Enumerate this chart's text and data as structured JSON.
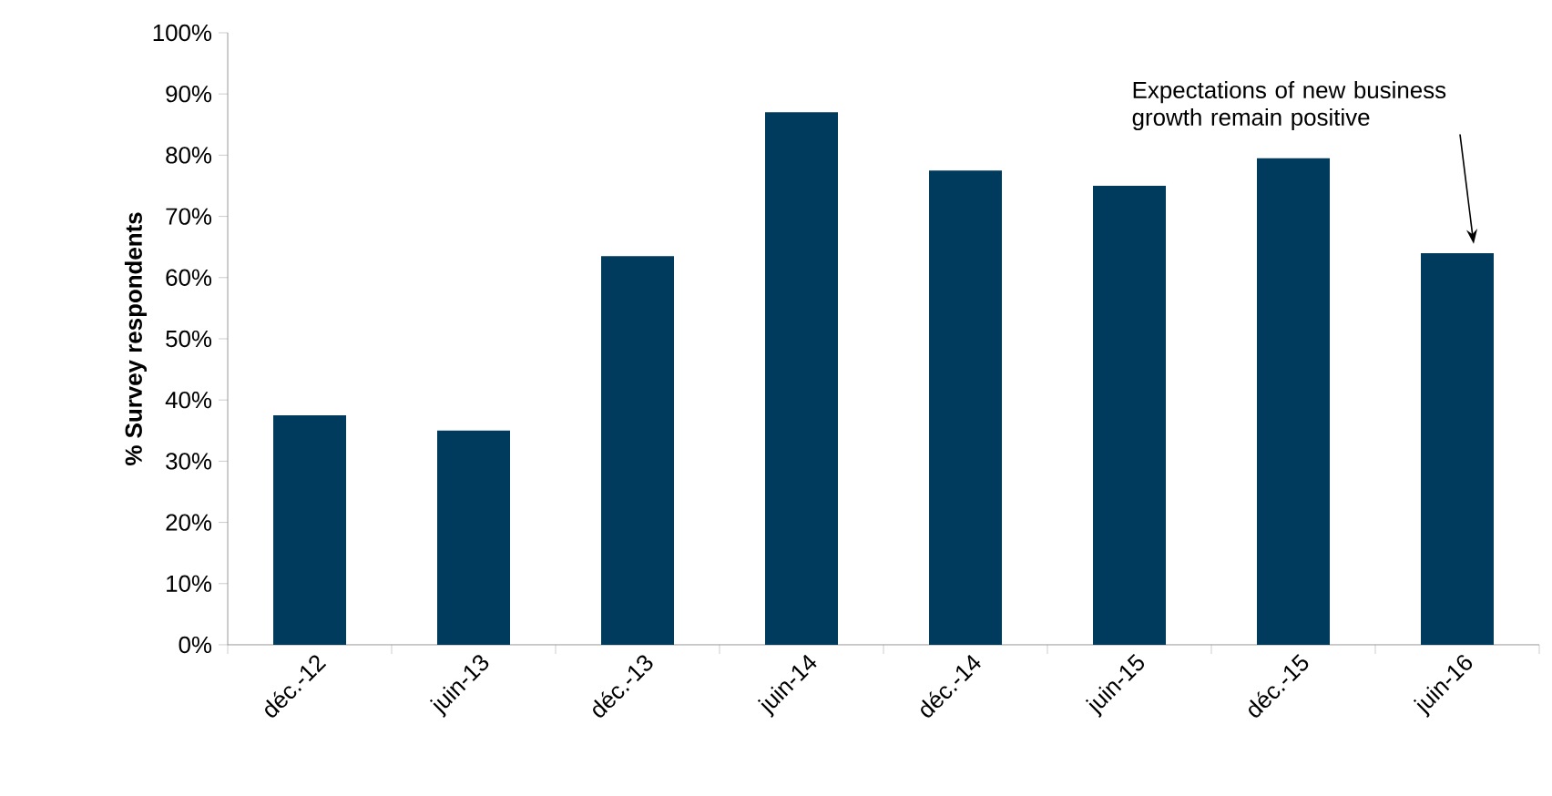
{
  "chart_data": {
    "type": "bar",
    "ylabel": "**% Survey respondents**",
    "categories": [
      "déc.-12",
      "juin-13",
      "déc.-13",
      "juin-14",
      "déc.-14",
      "juin-15",
      "déc.-15",
      "juin-16"
    ],
    "values": [
      37.5,
      35,
      63.5,
      87,
      77.5,
      75,
      79.5,
      64
    ],
    "color": "#003a5c",
    "ylim": [
      0,
      100
    ],
    "yticks": [
      {
        "value": 0,
        "label": "0%"
      },
      {
        "value": 10,
        "label": "10%"
      },
      {
        "value": 20,
        "label": "20%"
      },
      {
        "value": 30,
        "label": "30%"
      },
      {
        "value": 40,
        "label": "40%"
      },
      {
        "value": 50,
        "label": "50%"
      },
      {
        "value": 60,
        "label": "60%"
      },
      {
        "value": 70,
        "label": "70%"
      },
      {
        "value": 80,
        "label": "80%"
      },
      {
        "value": 90,
        "label": "90%"
      },
      {
        "value": 100,
        "label": "100%"
      }
    ],
    "grid": false,
    "annotations": [
      "Expectations of new business growth remain positive"
    ]
  }
}
